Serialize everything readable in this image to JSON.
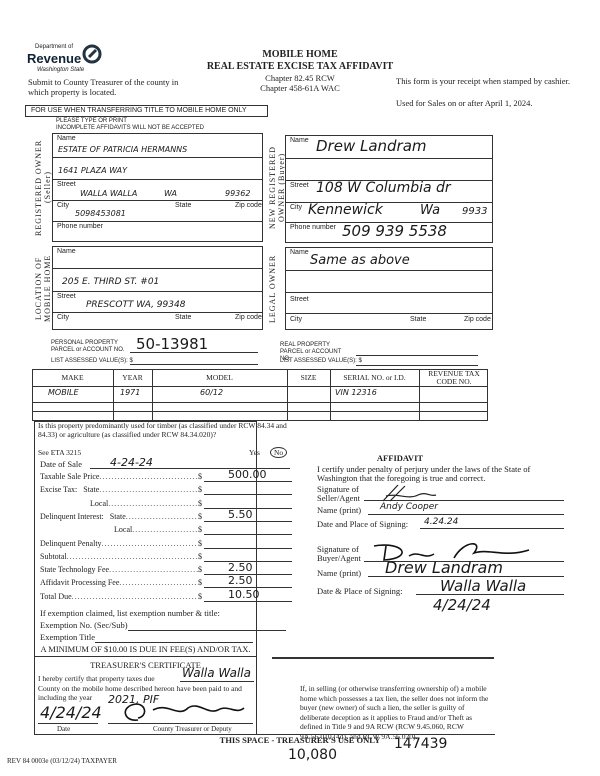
{
  "header": {
    "logo_dept": "Department of",
    "logo_revenue": "Revenue",
    "logo_state": "Washington State",
    "submit": "Submit to County Treasurer of the county in which property is located.",
    "title1": "MOBILE HOME",
    "title2": "REAL ESTATE EXCISE TAX AFFIDAVIT",
    "chapter1": "Chapter 82.45 RCW",
    "chapter2": "Chapter 458-61A WAC",
    "receipt": "This form is your receipt when stamped by cashier.",
    "used_for": "Used for Sales on or after April 1, 2024.",
    "notice": "FOR USE WHEN TRANSFERRING TITLE TO MOBILE HOME ONLY",
    "type_print": "PLEASE TYPE OR PRINT",
    "incomplete": "INCOMPLETE AFFIDAVITS WILL NOT BE ACCEPTED"
  },
  "labels": {
    "name": "Name",
    "street": "Street",
    "city": "City",
    "state": "State",
    "zip": "Zip code",
    "phone": "Phone number"
  },
  "seller": {
    "section": "REGISTERED OWNER (Seller)",
    "name": "ESTATE OF PATRICIA HERMANNS",
    "street": "1641 PLAZA WAY",
    "city": "WALLA WALLA",
    "state": "WA",
    "zip": "99362",
    "phone": "5098453081"
  },
  "buyer": {
    "section": "NEW REGISTERED OWNER (Buyer)",
    "name": "Drew Landram",
    "street": "108 W Columbia dr",
    "city": "Kennewick",
    "state": "Wa",
    "zip": "9933",
    "phone": "509 939 5538"
  },
  "location": {
    "section": "LOCATION OF MOBILE HOME",
    "street": "205 E. THIRD ST. #01",
    "city_state_zip": "PRESCOTT WA, 99348"
  },
  "legal": {
    "section": "LEGAL OWNER",
    "name": "Same as above"
  },
  "parcel": {
    "personal_label": "PERSONAL PROPERTY PARCEL or ACCOUNT NO.",
    "personal_value": "50-13981",
    "list_label": "LIST ASSESSED VALUE(S): $",
    "real_label": "REAL PROPERTY PARCEL or ACCOUNT NO."
  },
  "table": {
    "headers": [
      "MAKE",
      "YEAR",
      "MODEL",
      "SIZE",
      "SERIAL NO. or I.D.",
      "REVENUE TAX CODE NO."
    ],
    "rows": [
      [
        "MOBILE",
        "1971",
        "60/12",
        "",
        "VIN 12316",
        ""
      ]
    ]
  },
  "timber": {
    "question": "Is this property predominantly used for timber (as classified under RCW 84.34 and 84.33) or agriculture (as classified under RCW 84.34.020)?",
    "eta": "See ETA 3215",
    "yes": "Yes",
    "no": "No",
    "date_label": "Date of Sale",
    "date_value": "4-24-24"
  },
  "fees": [
    {
      "label": "Taxable Sale Price",
      "value": "500.00"
    },
    {
      "label": "Excise Tax:   State",
      "value": ""
    },
    {
      "label": "Local",
      "value": ""
    },
    {
      "label": "Delinquent Interest:   State",
      "value": "5.50"
    },
    {
      "label": "Local",
      "value": ""
    },
    {
      "label": "Delinquent Penalty",
      "value": ""
    },
    {
      "label": "Subtotal",
      "value": ""
    },
    {
      "label": "State Technology Fee",
      "value": "2.50"
    },
    {
      "label": "Affidavit Processing Fee",
      "value": "2.50"
    },
    {
      "label": "Total Due",
      "value": "10.50"
    }
  ],
  "exemption": {
    "intro": "If exemption claimed, list exemption number & title:",
    "no": "Exemption No. (Sec/Sub)",
    "title": "Exemption Title",
    "minimum": "A MINIMUM OF $10.00 IS DUE IN FEE(S) AND/OR TAX."
  },
  "affidavit": {
    "heading": "AFFIDAVIT",
    "certify": "I certify under penalty of perjury under the laws of the State of Washington that the foregoing is true and correct.",
    "seller_sig": "Signature of Seller/Agent",
    "seller_name_label": "Name (print)",
    "seller_name": "Andy Cooper",
    "seller_date_label": "Date and Place of Signing:",
    "seller_date": "4.24.24",
    "buyer_sig": "Signature of Buyer/Agent",
    "buyer_name_label": "Name (print)",
    "buyer_name": "Drew Landram",
    "buyer_date_label": "Date & Place of Signing:",
    "buyer_place": "Walla Walla",
    "buyer_date": "4/24/24"
  },
  "treasurer": {
    "heading": "TREASURER'S CERTIFICATE",
    "line1": "I hereby certify that property taxes due",
    "county": "Walla Walla",
    "line2": "County on the mobile home described hereon have been paid to and including the year",
    "year": "2021, PIF",
    "date": "4/24/24",
    "date_label": "Date",
    "sig_label": "County Treasurer or Deputy"
  },
  "lien_notice": "If, in selling (or otherwise transferring ownership of) a mobile home which possesses a tax lien, the seller does not inform the buyer (new owner) of such a lien, the seller is guilty of deliberate deception as it applies to Fraud and/or Theft as defined in Title 9 and 9A RCW (RCW 9.45.060, RCW 9A.56.010 (4d), and RCW 9A.56.020).",
  "footer": {
    "treasurer_use": "THIS SPACE - TREASURER'S USE ONLY",
    "form_no": "REV 84 0003e (03/12/24) TAXPAYER",
    "stamp1": "10,080",
    "stamp2": "147439"
  }
}
